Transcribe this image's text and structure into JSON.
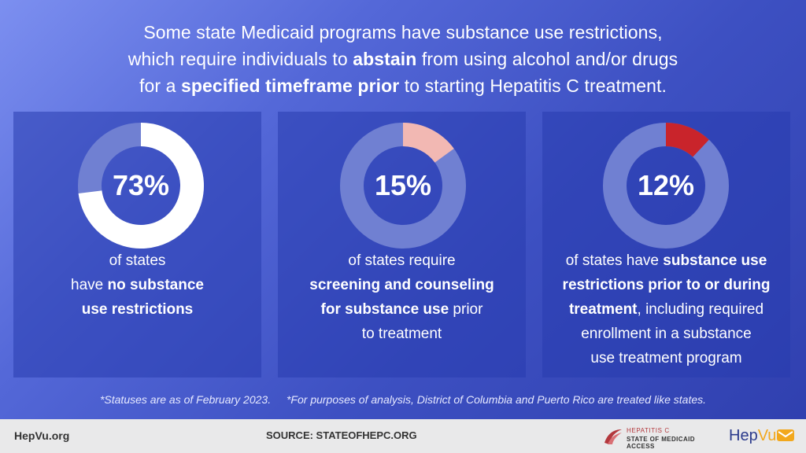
{
  "headline": {
    "line1": "Some state Medicaid programs have substance use restrictions,",
    "line2_pre": "which require individuals to ",
    "line2_bold": "abstain",
    "line2_post": " from using alcohol and/or drugs",
    "line3_pre": "for a ",
    "line3_bold": "specified timeframe prior",
    "line3_post": " to starting Hepatitis C treatment."
  },
  "colors": {
    "track": "#7080d2",
    "fill_1": "#ffffff",
    "fill_2": "#f2b8b3",
    "fill_3": "#c9242b"
  },
  "chart_data": [
    {
      "type": "pie",
      "value": 73,
      "label": "73%",
      "description": "of states have no substance use restrictions"
    },
    {
      "type": "pie",
      "value": 15,
      "label": "15%",
      "description": "of states require screening and counseling for substance use prior to treatment"
    },
    {
      "type": "pie",
      "value": 12,
      "label": "12%",
      "description": "of states have substance use restrictions prior to or during treatment, including required enrollment in a substance use treatment program"
    }
  ],
  "panels": [
    {
      "pct": "73%",
      "d1": "of states",
      "d2": "have ",
      "d2b": "no substance",
      "d3b": "use restrictions"
    },
    {
      "pct": "15%",
      "d1": "of states require",
      "d2b": "screening and counseling",
      "d3b": "for substance use",
      "d3": " prior",
      "d4": "to treatment"
    },
    {
      "pct": "12%",
      "d1": "of states have ",
      "d1b": "substance use",
      "d2b": "restrictions prior to or during",
      "d3b": "treatment",
      "d3": ", including required",
      "d4": "enrollment in a substance",
      "d5": "use treatment program"
    }
  ],
  "footnotes": {
    "left": "*Statuses are as of February 2023.",
    "right": "*For purposes of analysis, District of Columbia and Puerto Rico are treated like states."
  },
  "footer": {
    "site": "HepVu.org",
    "source": "SOURCE: STATEOFHEPC.ORG",
    "hepc_line1": "HEPATITIS C",
    "hepc_line2": "STATE OF MEDICAID ACCESS",
    "hepvu_hep": "Hep",
    "hepvu_vu": "Vu"
  }
}
